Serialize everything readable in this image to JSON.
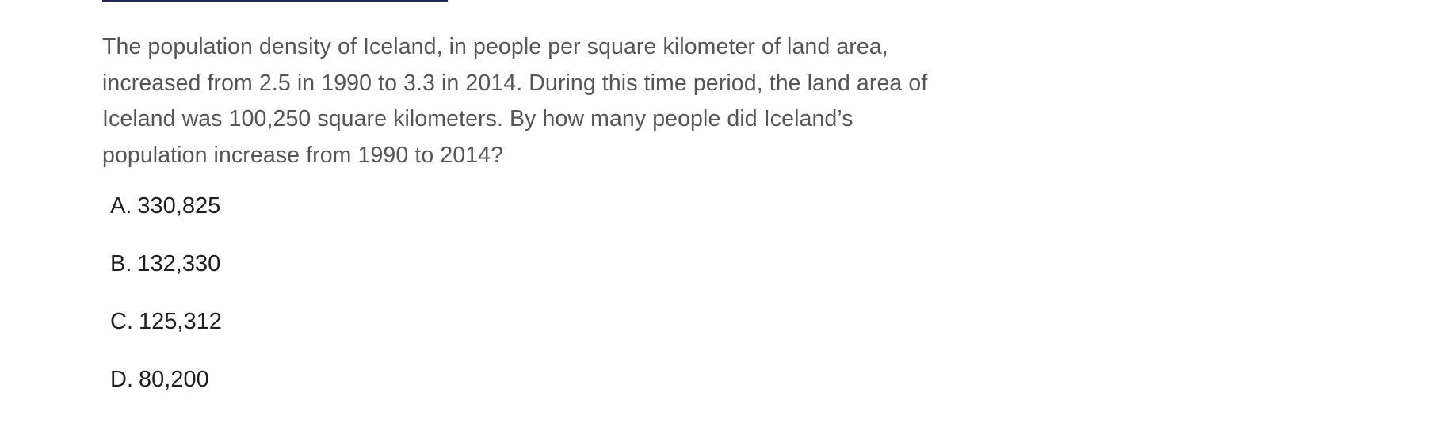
{
  "question": {
    "text": "The population density of Iceland, in people per square kilometer of land area, increased from 2.5 in 1990 to 3.3 in 2014. During this time period, the land area of Iceland was 100,250 square kilometers. By how many people did Iceland’s population increase from 1990 to 2014?"
  },
  "choices": [
    {
      "letter": "A.",
      "text": "330,825"
    },
    {
      "letter": "B.",
      "text": "132,330"
    },
    {
      "letter": "C.",
      "text": "125,312"
    },
    {
      "letter": "D.",
      "text": "80,200"
    }
  ],
  "colors": {
    "top_rule": "#1f2a52",
    "question_text": "#555555",
    "choice_text": "#1f1f1f"
  }
}
